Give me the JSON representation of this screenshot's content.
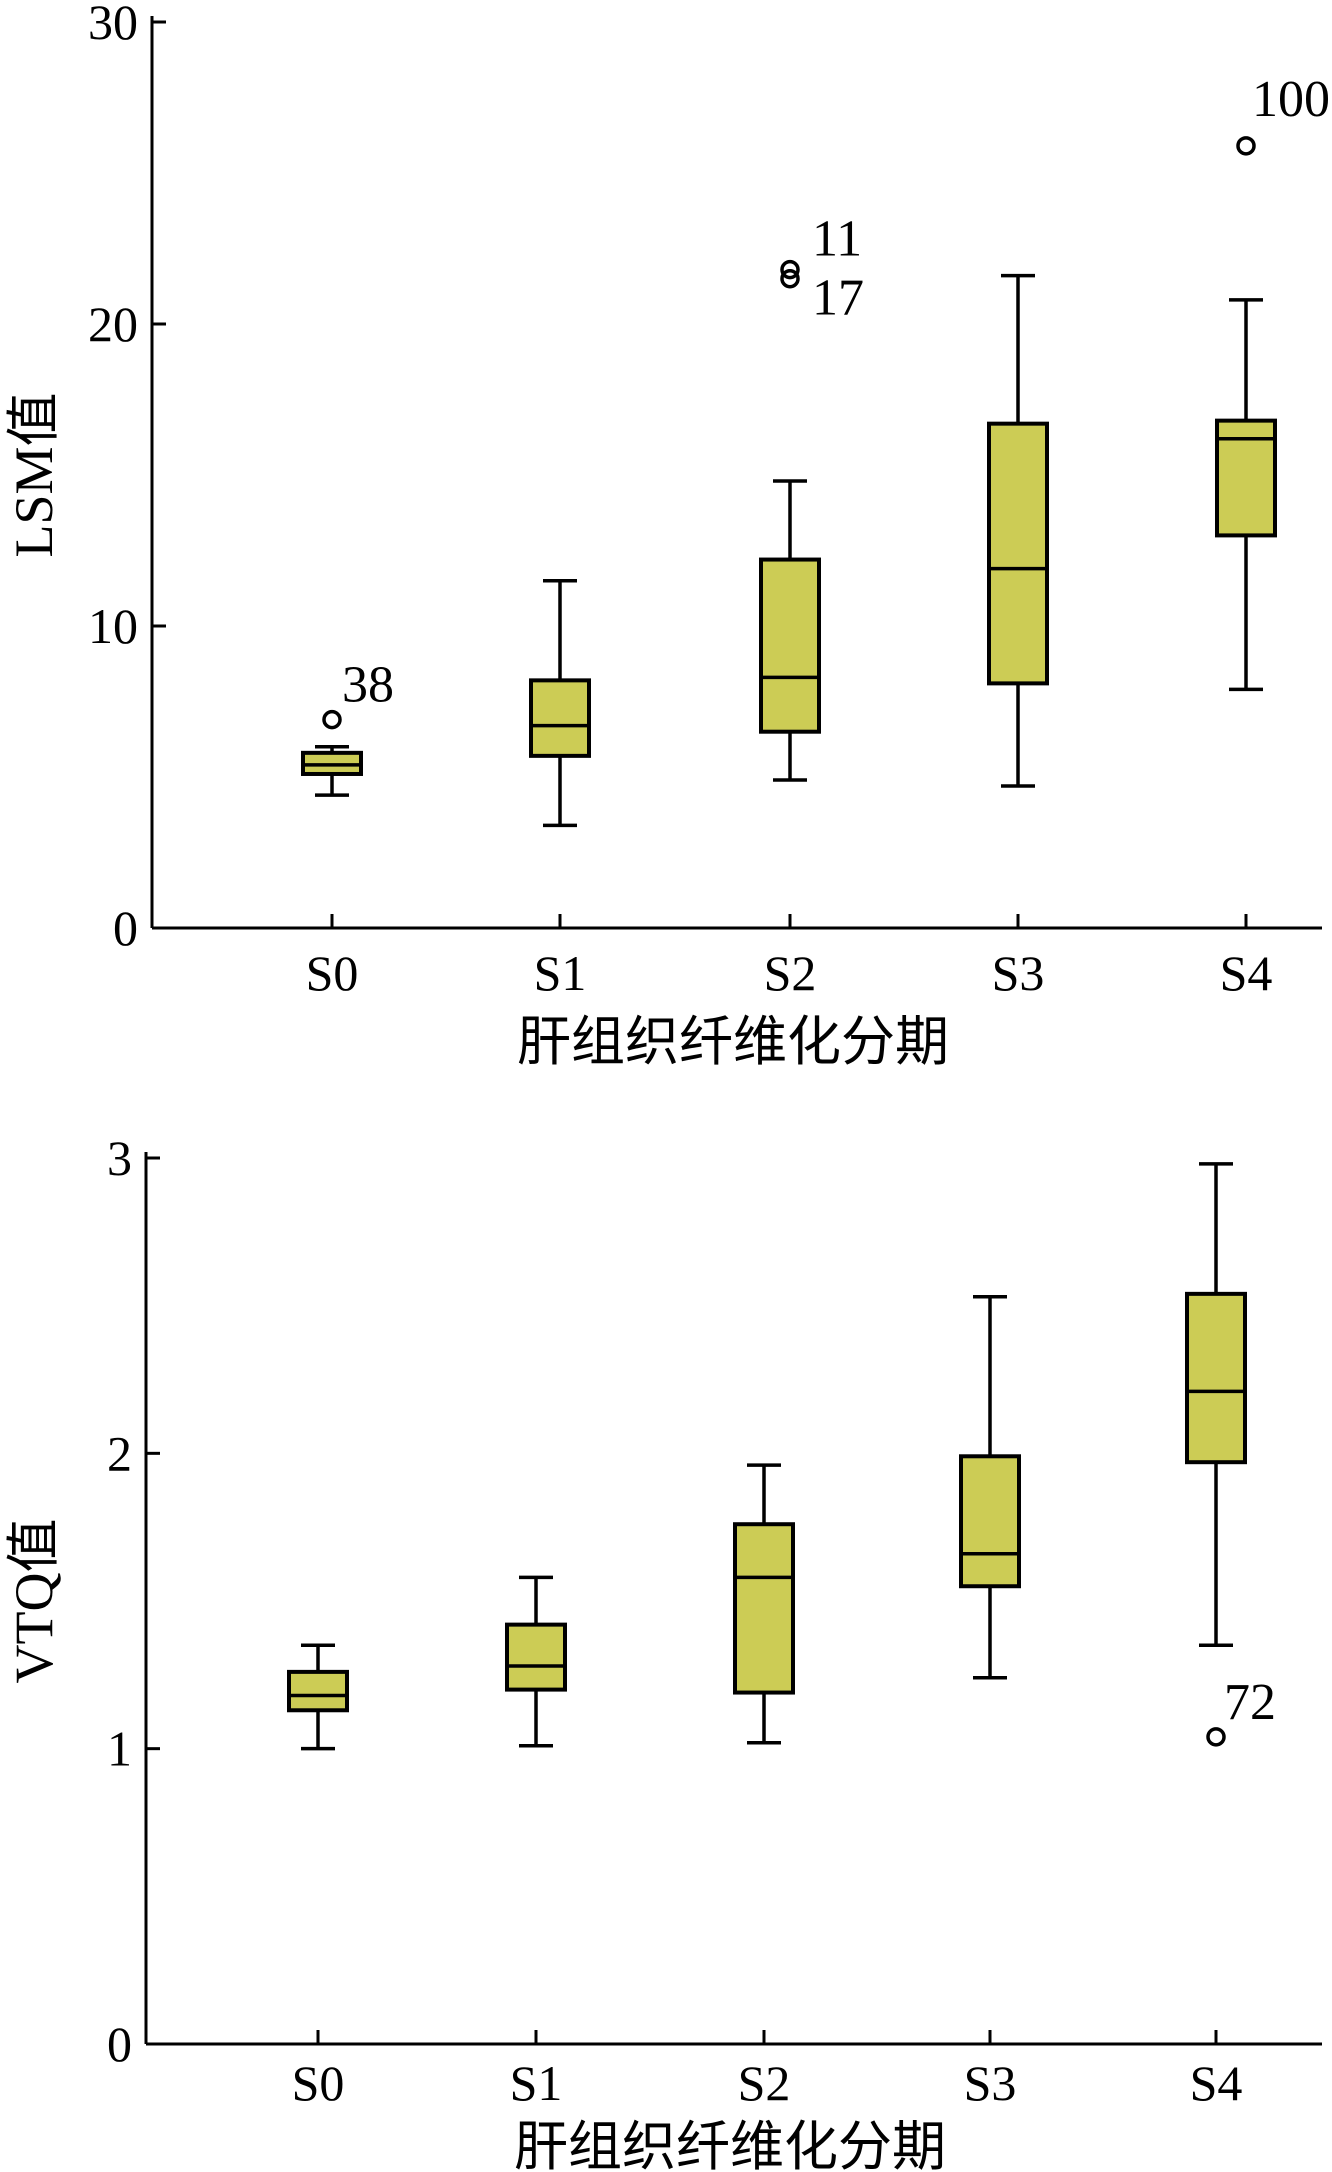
{
  "chart_data": [
    {
      "type": "box",
      "title": "",
      "xlabel": "肝组织纤维化分期",
      "ylabel": "LSM值",
      "ylim": [
        0,
        30
      ],
      "yticks": [
        0,
        10,
        20,
        30
      ],
      "categories": [
        "S0",
        "S1",
        "S2",
        "S3",
        "S4"
      ],
      "boxes": [
        {
          "category": "S0",
          "whisker_low": 4.4,
          "q1": 5.1,
          "median": 5.4,
          "q3": 5.8,
          "whisker_high": 6.0
        },
        {
          "category": "S1",
          "whisker_low": 3.4,
          "q1": 5.7,
          "median": 6.7,
          "q3": 8.2,
          "whisker_high": 11.5
        },
        {
          "category": "S2",
          "whisker_low": 4.9,
          "q1": 6.5,
          "median": 8.3,
          "q3": 12.2,
          "whisker_high": 14.8
        },
        {
          "category": "S3",
          "whisker_low": 4.7,
          "q1": 8.1,
          "median": 11.9,
          "q3": 16.7,
          "whisker_high": 21.6
        },
        {
          "category": "S4",
          "whisker_low": 7.9,
          "q1": 13.0,
          "median": 16.2,
          "q3": 16.8,
          "whisker_high": 20.8
        }
      ],
      "outliers": [
        {
          "category": "S0",
          "value": 6.9,
          "label": "38"
        },
        {
          "category": "S2",
          "value": 21.8,
          "label": "11"
        },
        {
          "category": "S2",
          "value": 21.5,
          "label": "17"
        },
        {
          "category": "S4",
          "value": 25.9,
          "label": "100"
        }
      ]
    },
    {
      "type": "box",
      "title": "",
      "xlabel": "肝组织纤维化分期",
      "ylabel": "VTQ值",
      "ylim": [
        0,
        3
      ],
      "yticks": [
        0,
        1,
        2,
        3
      ],
      "categories": [
        "S0",
        "S1",
        "S2",
        "S3",
        "S4"
      ],
      "boxes": [
        {
          "category": "S0",
          "whisker_low": 1.0,
          "q1": 1.13,
          "median": 1.18,
          "q3": 1.26,
          "whisker_high": 1.35
        },
        {
          "category": "S1",
          "whisker_low": 1.01,
          "q1": 1.2,
          "median": 1.28,
          "q3": 1.42,
          "whisker_high": 1.58
        },
        {
          "category": "S2",
          "whisker_low": 1.02,
          "q1": 1.19,
          "median": 1.58,
          "q3": 1.76,
          "whisker_high": 1.96
        },
        {
          "category": "S3",
          "whisker_low": 1.24,
          "q1": 1.55,
          "median": 1.66,
          "q3": 1.99,
          "whisker_high": 2.53
        },
        {
          "category": "S4",
          "whisker_low": 1.35,
          "q1": 1.97,
          "median": 2.21,
          "q3": 2.54,
          "whisker_high": 2.98
        }
      ],
      "outliers": [
        {
          "category": "S4",
          "value": 1.04,
          "label": "72"
        }
      ]
    }
  ],
  "colors": {
    "box_fill": "#cccc55",
    "stroke": "#000000",
    "background": "#ffffff"
  }
}
